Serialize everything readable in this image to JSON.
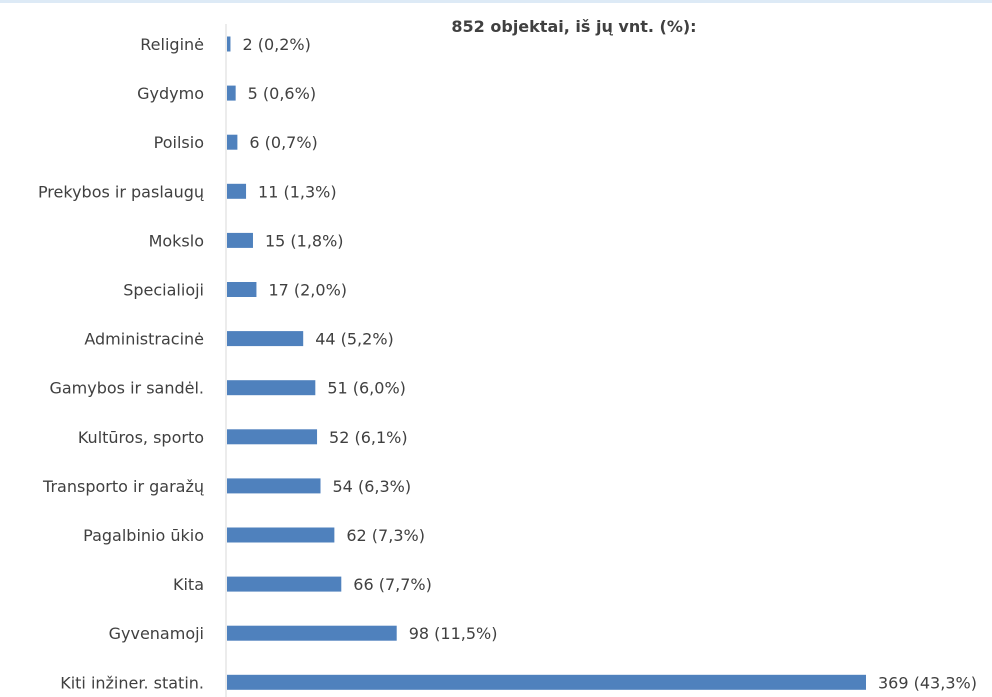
{
  "chart_data": {
    "type": "bar",
    "orientation": "horizontal",
    "title": "852 objektai, iš jų vnt. (%):",
    "categories": [
      "Religinė",
      "Gydymo",
      "Poilsio",
      "Prekybos ir paslaugų",
      "Mokslo",
      "Specialioji",
      "Administracinė",
      "Gamybos ir sandėl.",
      "Kultūros, sporto",
      "Transporto ir garažų",
      "Pagalbinio ūkio",
      "Kita",
      "Gyvenamoji",
      "Kiti inžiner. statin."
    ],
    "values": [
      2,
      5,
      6,
      11,
      15,
      17,
      44,
      51,
      52,
      54,
      62,
      66,
      98,
      369
    ],
    "data_labels": [
      "2 (0,2%)",
      "5 (0,6%)",
      "6 (0,7%)",
      "11 (1,3%)",
      "15 (1,8%)",
      "17 (2,0%)",
      "44 (5,2%)",
      "51 (6,0%)",
      "52 (6,1%)",
      "54 (6,3%)",
      "62 (7,3%)",
      "66 (7,7%)",
      "98 (11,5%)",
      "369 (43,3%)"
    ],
    "xlim": [
      0,
      369
    ],
    "grid": false,
    "legend": "none",
    "bar_color": "#4f81bd",
    "axis_color": "#d9d9d9",
    "text_color": "#404040"
  }
}
